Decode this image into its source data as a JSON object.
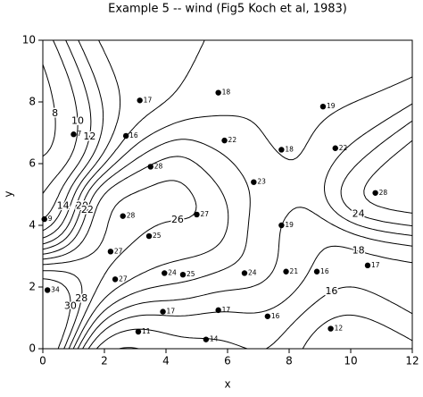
{
  "chart_data": {
    "type": "contour",
    "title": "Example 5 -- wind (Fig5 Koch et al, 1983)",
    "x_label": "x",
    "y_label": "y",
    "x": [
      0.05,
      0.15,
      1.0,
      3.15,
      2.7,
      3.5,
      2.6,
      2.2,
      2.35,
      3.45,
      3.95,
      4.55,
      5.0,
      5.7,
      5.9,
      6.85,
      7.75,
      7.75,
      9.1,
      9.5,
      10.8,
      6.55,
      7.9,
      8.9,
      10.55,
      3.9,
      5.7,
      7.3,
      9.35,
      3.1,
      5.3
    ],
    "y": [
      4.2,
      1.9,
      6.95,
      8.05,
      6.9,
      5.9,
      4.3,
      3.15,
      2.25,
      3.65,
      2.45,
      2.4,
      4.35,
      8.3,
      6.75,
      5.4,
      6.45,
      4.0,
      7.85,
      6.5,
      5.05,
      2.45,
      2.5,
      2.5,
      2.7,
      1.2,
      1.25,
      1.05,
      0.65,
      0.55,
      0.3
    ],
    "values": [
      9,
      34,
      7,
      17,
      16,
      28,
      28,
      27,
      27,
      25,
      24,
      25,
      27,
      18,
      22,
      23,
      18,
      19,
      19,
      22,
      28,
      24,
      21,
      16,
      17,
      17,
      17,
      16,
      12,
      11,
      14
    ],
    "levels": [
      8,
      10,
      12,
      14,
      16,
      18,
      20,
      22,
      24,
      26,
      28,
      30
    ],
    "xlim": [
      0,
      12
    ],
    "ylim": [
      0,
      10
    ],
    "xticks": [
      0,
      2,
      4,
      6,
      8,
      10,
      12
    ],
    "yticks": [
      0,
      2,
      4,
      6,
      8,
      10
    ],
    "color": "#000000"
  }
}
